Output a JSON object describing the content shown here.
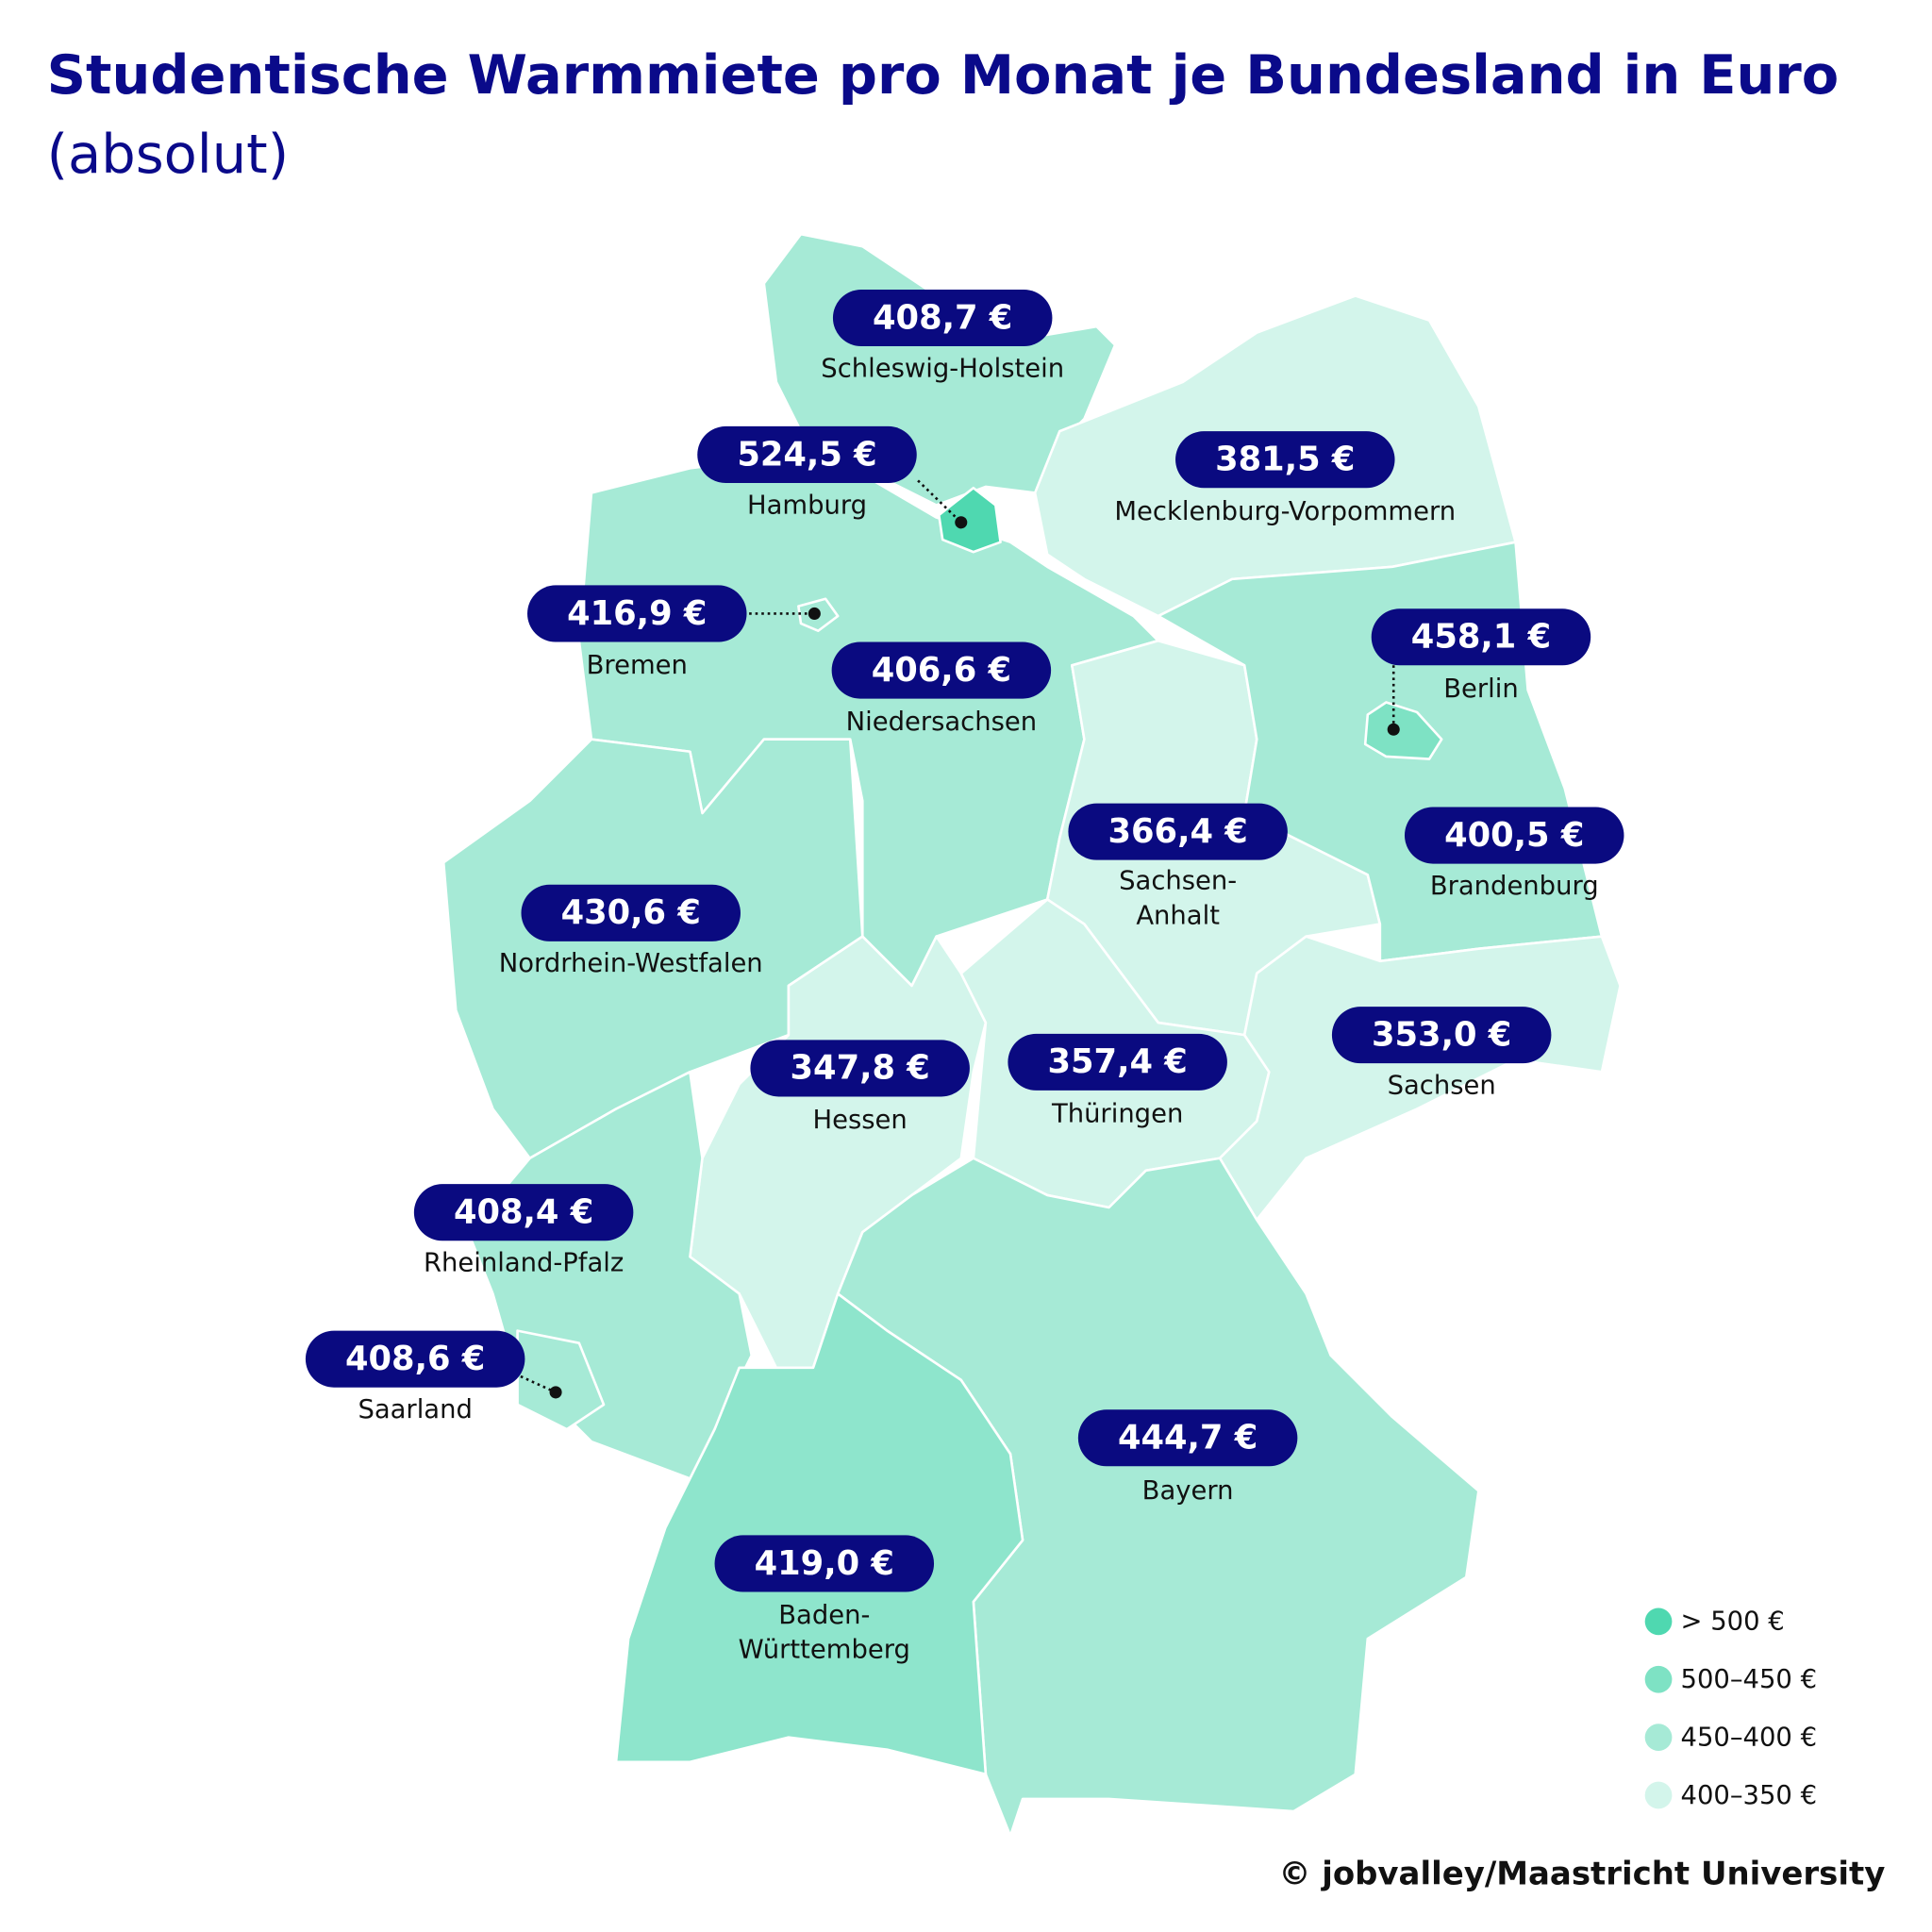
{
  "header": {
    "title": "Studentische Warmmiete pro Monat je Bundesland in Euro",
    "subtitle": "(absolut)"
  },
  "regions": [
    {
      "label": "408,7 €",
      "name": [
        "Schleswig-Holstein"
      ]
    },
    {
      "label": "524,5 €",
      "name": [
        "Hamburg"
      ]
    },
    {
      "label": "381,5 €",
      "name": [
        "Mecklenburg-Vorpommern"
      ]
    },
    {
      "label": "416,9 €",
      "name": [
        "Bremen"
      ]
    },
    {
      "label": "406,6 €",
      "name": [
        "Niedersachsen"
      ]
    },
    {
      "label": "458,1 €",
      "name": [
        "Berlin"
      ]
    },
    {
      "label": "366,4 €",
      "name": [
        "Sachsen-",
        "Anhalt"
      ]
    },
    {
      "label": "400,5 €",
      "name": [
        "Brandenburg"
      ]
    },
    {
      "label": "430,6 €",
      "name": [
        "Nordrhein-Westfalen"
      ]
    },
    {
      "label": "347,8 €",
      "name": [
        "Hessen"
      ]
    },
    {
      "label": "357,4 €",
      "name": [
        "Thüringen"
      ]
    },
    {
      "label": "353,0 €",
      "name": [
        "Sachsen"
      ]
    },
    {
      "label": "408,4 €",
      "name": [
        "Rheinland-Pfalz"
      ]
    },
    {
      "label": "408,6 €",
      "name": [
        "Saarland"
      ]
    },
    {
      "label": "444,7 €",
      "name": [
        "Bayern"
      ]
    },
    {
      "label": "419,0 €",
      "name": [
        "Baden-",
        "Württemberg"
      ]
    }
  ],
  "legend": [
    "> 500 €",
    "500–450 €",
    "450–400 €",
    "400–350 €"
  ],
  "source": "© jobvalley/Maastricht University"
}
